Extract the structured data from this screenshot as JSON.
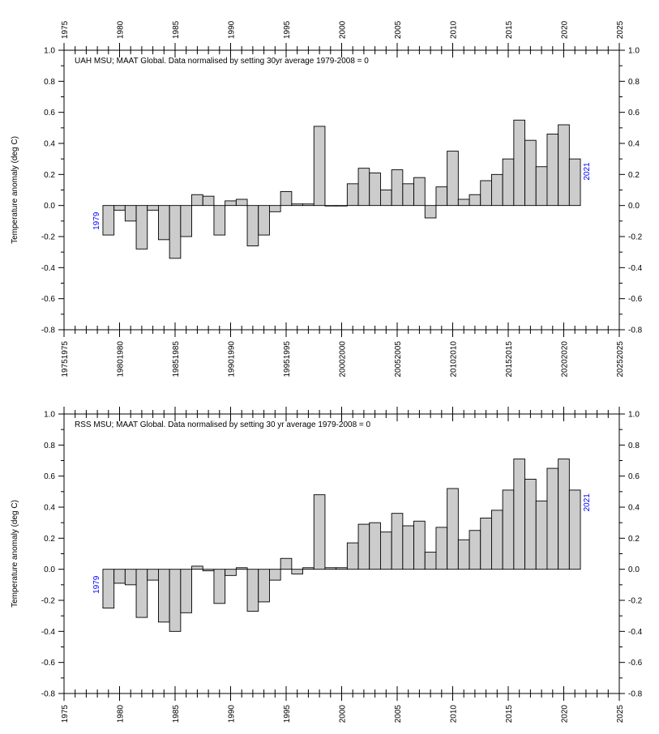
{
  "chart_data": [
    {
      "type": "bar",
      "title": "UAH MSU; MAAT Global. Data normalised by setting 30yr average 1979-2008 = 0",
      "ylabel": "Temperature anomaly (deg C)",
      "xlabel": "",
      "xlim": [
        1975,
        2025
      ],
      "ylim": [
        -0.8,
        1.0
      ],
      "x_ticks": [
        1975,
        1980,
        1985,
        1990,
        1995,
        2000,
        2005,
        2010,
        2015,
        2020,
        2025
      ],
      "y_ticks": [
        "-0.8",
        "-0.6",
        "-0.4",
        "-0.2",
        "0.0",
        "0.2",
        "0.4",
        "0.6",
        "0.8",
        "1.0"
      ],
      "y_ticks_right": [
        "-0.8",
        "-0.6",
        "-0.4",
        "-0.2",
        "0.0",
        "0.2",
        "0.4",
        "0.6",
        "0.8",
        "1.0"
      ],
      "start_label": "1979",
      "end_label": "2021",
      "grid": false,
      "bar_color": "#cccccc",
      "label_color": "#0000ff",
      "x": [
        1979,
        1980,
        1981,
        1982,
        1983,
        1984,
        1985,
        1986,
        1987,
        1988,
        1989,
        1990,
        1991,
        1992,
        1993,
        1994,
        1995,
        1996,
        1997,
        1998,
        1999,
        2000,
        2001,
        2002,
        2003,
        2004,
        2005,
        2006,
        2007,
        2008,
        2009,
        2010,
        2011,
        2012,
        2013,
        2014,
        2015,
        2016,
        2017,
        2018,
        2019,
        2020,
        2021
      ],
      "values": [
        -0.19,
        -0.03,
        -0.1,
        -0.28,
        -0.03,
        -0.22,
        -0.34,
        -0.2,
        0.07,
        0.06,
        -0.19,
        0.03,
        0.04,
        -0.26,
        -0.19,
        -0.04,
        0.09,
        0.01,
        0.01,
        0.51,
        0.0,
        0.0,
        0.14,
        0.24,
        0.21,
        0.1,
        0.23,
        0.14,
        0.18,
        -0.08,
        0.12,
        0.35,
        0.04,
        0.07,
        0.16,
        0.2,
        0.3,
        0.55,
        0.42,
        0.25,
        0.46,
        0.52,
        0.3
      ]
    },
    {
      "type": "bar",
      "title": "RSS MSU; MAAT Global. Data normalised by setting 30 yr average 1979-2008 = 0",
      "ylabel": "Temperature anomaly (deg C)",
      "xlabel": "",
      "xlim": [
        1975,
        2025
      ],
      "ylim": [
        -0.8,
        1.0
      ],
      "x_ticks": [
        1975,
        1980,
        1985,
        1990,
        1995,
        2000,
        2005,
        2010,
        2015,
        2020,
        2025
      ],
      "y_ticks": [
        "-0.8",
        "-0.6",
        "-0.4",
        "-0.2",
        "0.0",
        "0.2",
        "0.4",
        "0.6",
        "0.8",
        "1.0"
      ],
      "y_ticks_right": [
        "-0.8",
        "-0.6",
        "-0.4",
        "-0.2",
        "0.0",
        "0.2",
        "0.4",
        "0.6",
        "0.8",
        "1.0"
      ],
      "start_label": "1979",
      "end_label": "2021",
      "grid": false,
      "bar_color": "#cccccc",
      "label_color": "#0000ff",
      "x": [
        1979,
        1980,
        1981,
        1982,
        1983,
        1984,
        1985,
        1986,
        1987,
        1988,
        1989,
        1990,
        1991,
        1992,
        1993,
        1994,
        1995,
        1996,
        1997,
        1998,
        1999,
        2000,
        2001,
        2002,
        2003,
        2004,
        2005,
        2006,
        2007,
        2008,
        2009,
        2010,
        2011,
        2012,
        2013,
        2014,
        2015,
        2016,
        2017,
        2018,
        2019,
        2020,
        2021
      ],
      "values": [
        -0.25,
        -0.09,
        -0.1,
        -0.31,
        -0.07,
        -0.34,
        -0.4,
        -0.28,
        0.02,
        -0.01,
        -0.22,
        -0.04,
        0.01,
        -0.27,
        -0.21,
        -0.07,
        0.07,
        -0.03,
        0.01,
        0.48,
        0.01,
        0.01,
        0.17,
        0.29,
        0.3,
        0.24,
        0.36,
        0.28,
        0.31,
        0.11,
        0.27,
        0.52,
        0.19,
        0.25,
        0.33,
        0.38,
        0.51,
        0.71,
        0.58,
        0.44,
        0.65,
        0.71,
        0.51
      ]
    }
  ]
}
